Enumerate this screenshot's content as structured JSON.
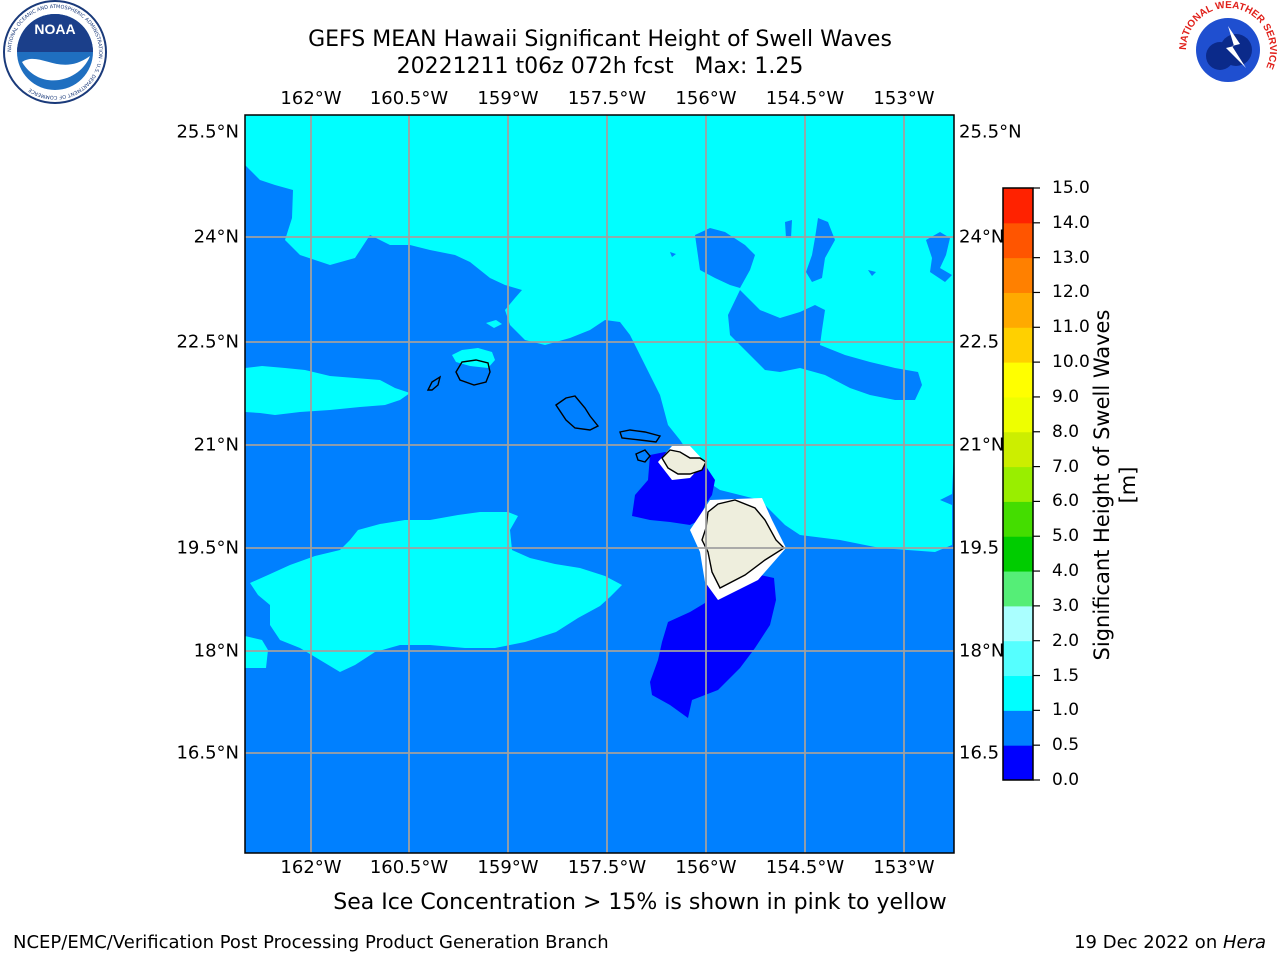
{
  "title": {
    "line1": "GEFS MEAN Hawaii Significant Height of Swell Waves",
    "line2": "20221211 t06z 072h fcst   Max: 1.25"
  },
  "map": {
    "lon_labels": [
      "162°W",
      "160.5°W",
      "159°W",
      "157.5°W",
      "156°W",
      "154.5°W",
      "153°W"
    ],
    "lat_labels": [
      "25.5°N",
      "24°N",
      "22.5°N",
      "21°N",
      "19.5°N",
      "18°N",
      "16.5°N"
    ],
    "lat_labels_right": [
      "25.5°N",
      "24°N",
      "22.5",
      "21°N",
      "19.5",
      "18°N",
      "16.5"
    ],
    "islands": [
      "Niihau",
      "Kauai",
      "Oahu",
      "Molokai",
      "Lanai",
      "Maui",
      "Hawaii"
    ],
    "colors": {
      "band_0_0.5": "#0000ff",
      "band_0.5_1.0": "#0080ff",
      "band_1.0_1.5": "#00ffff",
      "land": "#eeeedd",
      "grid": "#a0a0a0"
    }
  },
  "colorbar": {
    "label": "Significant Height of Swell Waves [m]",
    "ticks": [
      "0.0",
      "0.5",
      "1.0",
      "1.5",
      "2.0",
      "3.0",
      "4.0",
      "5.0",
      "6.0",
      "7.0",
      "8.0",
      "9.0",
      "10.0",
      "11.0",
      "12.0",
      "13.0",
      "14.0",
      "15.0"
    ],
    "colors": [
      "#0000ff",
      "#0080ff",
      "#00ffff",
      "#55ffff",
      "#aaffff",
      "#55ee77",
      "#00cc00",
      "#44dd00",
      "#99ee00",
      "#ccee00",
      "#eeff00",
      "#ffff00",
      "#ffd000",
      "#ffaa00",
      "#ff8000",
      "#ff5500",
      "#ff2200"
    ]
  },
  "caption": "Sea Ice Concentration > 15% is shown in pink to yellow",
  "footer": {
    "left": "NCEP/EMC/Verification Post Processing Product Generation Branch",
    "right_date": "19 Dec 2022 on ",
    "right_host": "Hera"
  },
  "logos": {
    "noaa_text": "NOAA",
    "noaa_ring": "NATIONAL OCEANIC AND ATMOSPHERIC ADMINISTRATION · U.S. DEPARTMENT OF COMMERCE",
    "nws_ring": "NATIONAL WEATHER SERVICE"
  }
}
